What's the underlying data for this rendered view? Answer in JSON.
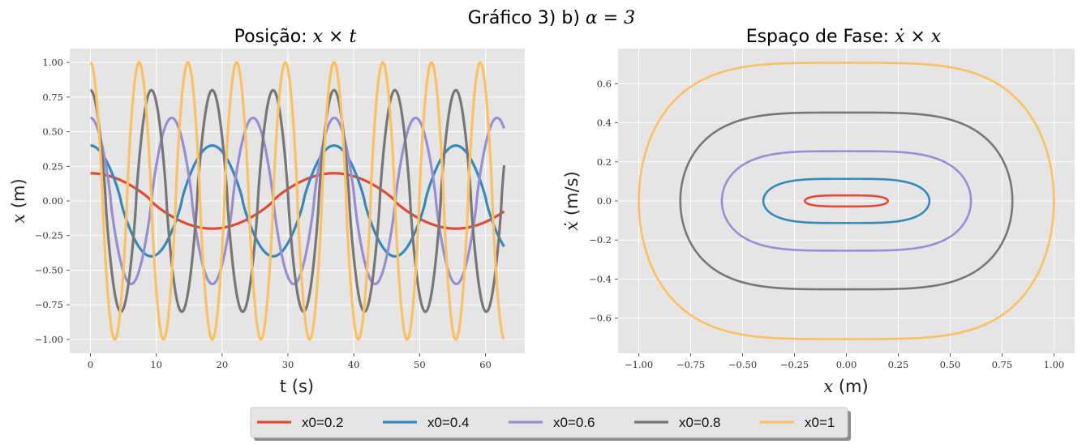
{
  "suptitle": {
    "prefix": "Gráfico 3) b) ",
    "math": "α = 3"
  },
  "colors": {
    "x0=0.2": "#E24A33",
    "x0=0.4": "#348ABD",
    "x0=0.6": "#988ED5",
    "x0=0.8": "#777777",
    "x0=1": "#FBC15E"
  },
  "chart_data": [
    {
      "type": "line",
      "title_prefix": "Posição: ",
      "title_math": "x × t",
      "xlabel": "t (s)",
      "ylabel_math": "x",
      "ylabel_unit": " (m)",
      "xlim": [
        -3.14,
        65.97
      ],
      "ylim": [
        -1.1,
        1.1
      ],
      "xticks": [
        0,
        10,
        20,
        30,
        40,
        50,
        60
      ],
      "yticks": [
        1.0,
        0.75,
        0.5,
        0.25,
        0.0,
        -0.25,
        -0.5,
        -0.75,
        -1.0
      ],
      "ytick_labels": [
        "1.00",
        "0.75",
        "0.50",
        "0.25",
        "0.00",
        "−0.25",
        "−0.50",
        "−0.75",
        "−1.00"
      ],
      "grid": true,
      "series": [
        {
          "name": "x0=0.2",
          "amplitude": 0.2,
          "period": 37.0,
          "t_end": 62.83
        },
        {
          "name": "x0=0.4",
          "amplitude": 0.4,
          "period": 18.5,
          "t_end": 62.83
        },
        {
          "name": "x0=0.6",
          "amplitude": 0.6,
          "period": 12.35,
          "t_end": 62.83
        },
        {
          "name": "x0=0.8",
          "amplitude": 0.8,
          "period": 9.25,
          "t_end": 62.83
        },
        {
          "name": "x0=1",
          "amplitude": 1.0,
          "period": 7.4,
          "t_end": 62.83
        }
      ]
    },
    {
      "type": "line",
      "title_prefix": "Espaço de Fase: ",
      "title_math": "ẋ × x",
      "xlabel_math": "x",
      "xlabel_unit": " (m)",
      "ylabel_math": "ẋ",
      "ylabel_unit": " (m/s)",
      "xlim": [
        -1.1,
        1.1
      ],
      "ylim": [
        -0.78,
        0.78
      ],
      "xticks": [
        -1.0,
        -0.75,
        -0.5,
        -0.25,
        0.0,
        0.25,
        0.5,
        0.75,
        1.0
      ],
      "xtick_labels": [
        "−1.00",
        "−0.75",
        "−0.50",
        "−0.25",
        "0.00",
        "0.25",
        "0.50",
        "0.75",
        "1.00"
      ],
      "yticks": [
        0.6,
        0.4,
        0.2,
        0.0,
        -0.2,
        -0.4,
        -0.6
      ],
      "ytick_labels": [
        "0.6",
        "0.4",
        "0.2",
        "0.0",
        "−0.2",
        "−0.4",
        "−0.6"
      ],
      "grid": true,
      "series": [
        {
          "name": "x0=0.2",
          "x_max": 0.2,
          "v_max": 0.0283
        },
        {
          "name": "x0=0.4",
          "x_max": 0.4,
          "v_max": 0.1131
        },
        {
          "name": "x0=0.6",
          "x_max": 0.6,
          "v_max": 0.2546
        },
        {
          "name": "x0=0.8",
          "x_max": 0.8,
          "v_max": 0.4525
        },
        {
          "name": "x0=1",
          "x_max": 1.0,
          "v_max": 0.7071
        }
      ]
    }
  ],
  "legend": [
    "x0=0.2",
    "x0=0.4",
    "x0=0.6",
    "x0=0.8",
    "x0=1"
  ]
}
